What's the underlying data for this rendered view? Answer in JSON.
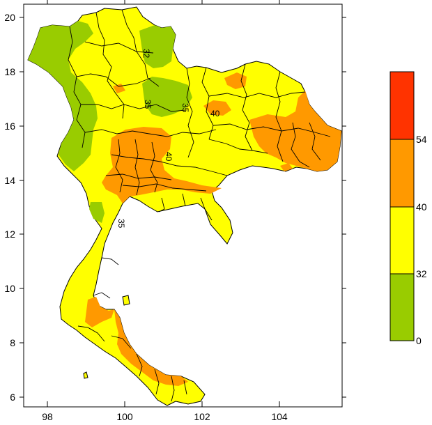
{
  "map": {
    "x_ticks": [
      "98",
      "100",
      "102",
      "104"
    ],
    "y_ticks": [
      "20",
      "18",
      "16",
      "14",
      "12",
      "10",
      "8",
      "6"
    ],
    "zone_colors": {
      "below_32": "#99cc00",
      "from_32_to_40": "#ffff00",
      "from_40_to_54": "#ff9900",
      "above_54": "#ff3300"
    },
    "contour_labels": [
      "32",
      "35",
      "35",
      "40",
      "40",
      "35"
    ]
  },
  "legend": {
    "bins": [
      {
        "color": "#ff3300",
        "from": 54
      },
      {
        "color": "#ff9900",
        "from": 40,
        "to": 54
      },
      {
        "color": "#ffff00",
        "from": 32,
        "to": 40
      },
      {
        "color": "#99cc00",
        "from": 0,
        "to": 32
      }
    ],
    "labels": [
      "54",
      "40",
      "32",
      "0"
    ]
  }
}
